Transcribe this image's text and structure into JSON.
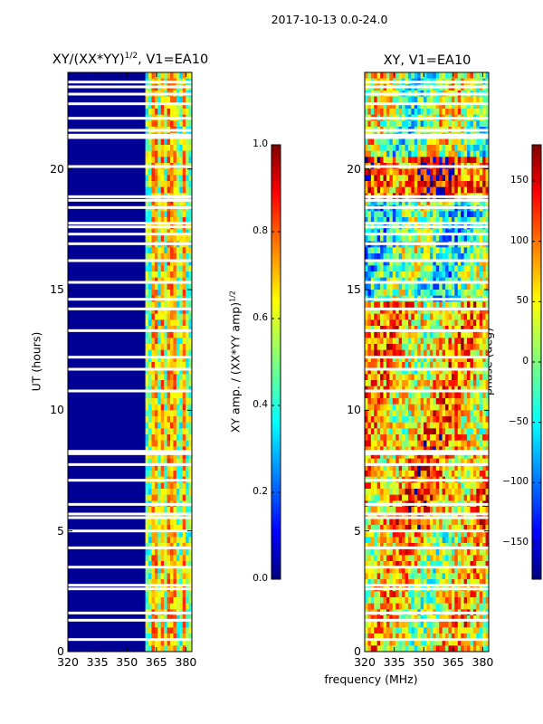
{
  "figure": {
    "suptitle": "2017-10-13 0.0-24.0",
    "xlabel_shared": "frequency (MHz)"
  },
  "panel_left": {
    "title_main": "XY/(XX*YY)",
    "title_sup": "1/2",
    "title_suffix": ", V1=EA10",
    "ylabel": "UT (hours)"
  },
  "panel_right": {
    "title": "XY, V1=EA10"
  },
  "colorbar_left": {
    "label_main": "XY amp. / (XX*YY amp)",
    "label_sup": "1/2"
  },
  "colorbar_right": {
    "label": "phase (deg)"
  },
  "colors": {
    "background": "#ffffff",
    "colormap": "jet",
    "colormap_stops": [
      "#00007f",
      "#0000ff",
      "#007fff",
      "#00ffff",
      "#7fff7f",
      "#ffff00",
      "#ff7f00",
      "#ff0000",
      "#7f0000"
    ]
  },
  "chart_data": [
    {
      "type": "heatmap",
      "title": "XY/(XX*YY)^1/2, V1=EA10",
      "xlabel": "frequency (MHz)",
      "ylabel": "UT (hours)",
      "xlim": [
        320,
        383
      ],
      "ylim": [
        0,
        24
      ],
      "xticks": [
        320,
        335,
        350,
        365,
        380
      ],
      "yticks": [
        0,
        5,
        10,
        15,
        20
      ],
      "colorbar": {
        "label": "XY amp. / (XX*YY amp)^1/2",
        "clim": [
          0.0,
          1.0
        ],
        "ticks": [
          0.0,
          0.2,
          0.4,
          0.6,
          0.8,
          1.0
        ]
      },
      "background_value": 0.02,
      "bright_bands": [
        {
          "f_start": 360,
          "f_end": 383,
          "typical_value": 0.5,
          "peak_value": 0.85
        }
      ],
      "bright_channels_mhz": [
        364,
        368,
        372,
        375,
        379
      ],
      "gaps_ut_hours": [
        0.5,
        1.3,
        1.6,
        2.6,
        2.75,
        3.5,
        4.3,
        5.0,
        5.55,
        5.7,
        6.1,
        7.1,
        7.75,
        8.2,
        8.3,
        10.8,
        11.7,
        12.2,
        13.3,
        14.2,
        14.6,
        15.3,
        16.2,
        16.9,
        17.3,
        17.6,
        17.75,
        18.4,
        18.7,
        18.85,
        20.1,
        21.3,
        21.4,
        21.6,
        22.1,
        22.7,
        23.1,
        23.4,
        23.6
      ]
    },
    {
      "type": "heatmap",
      "title": "XY, V1=EA10",
      "xlabel": "frequency (MHz)",
      "ylabel": "",
      "xlim": [
        320,
        383
      ],
      "ylim": [
        0,
        24
      ],
      "xticks": [
        320,
        335,
        350,
        365,
        380
      ],
      "yticks": [
        0,
        5,
        10,
        15,
        20
      ],
      "colorbar": {
        "label": "phase (deg)",
        "clim": [
          -180,
          180
        ],
        "ticks": [
          -150,
          -100,
          -50,
          0,
          50,
          100,
          150
        ]
      },
      "regions": [
        {
          "ut_start": 0.0,
          "ut_end": 5.0,
          "description": "mixed",
          "typical_phase_deg": 40
        },
        {
          "ut_start": 5.0,
          "ut_end": 9.0,
          "description": "mixed",
          "typical_phase_deg": 80
        },
        {
          "ut_start": 9.0,
          "ut_end": 14.5,
          "description": "warm with blue streaks",
          "typical_phase_deg": 60
        },
        {
          "ut_start": 14.5,
          "ut_end": 18.5,
          "description": "green/cyan",
          "typical_phase_deg": -20
        },
        {
          "ut_start": 18.8,
          "ut_end": 20.6,
          "description": "red/orange",
          "typical_phase_deg": 120
        },
        {
          "ut_start": 20.8,
          "ut_end": 24.0,
          "description": "mixed",
          "typical_phase_deg": 10
        }
      ],
      "gaps_ut_hours": [
        0.5,
        1.3,
        1.6,
        2.6,
        2.75,
        3.5,
        4.3,
        5.0,
        5.55,
        5.7,
        6.1,
        7.1,
        7.75,
        8.2,
        8.3,
        10.8,
        11.7,
        12.2,
        13.3,
        14.2,
        14.6,
        15.3,
        16.2,
        16.9,
        17.3,
        17.6,
        17.75,
        18.4,
        18.7,
        18.85,
        20.1,
        21.3,
        21.4,
        21.6,
        22.1,
        22.7,
        23.1,
        23.4,
        23.6
      ]
    }
  ]
}
